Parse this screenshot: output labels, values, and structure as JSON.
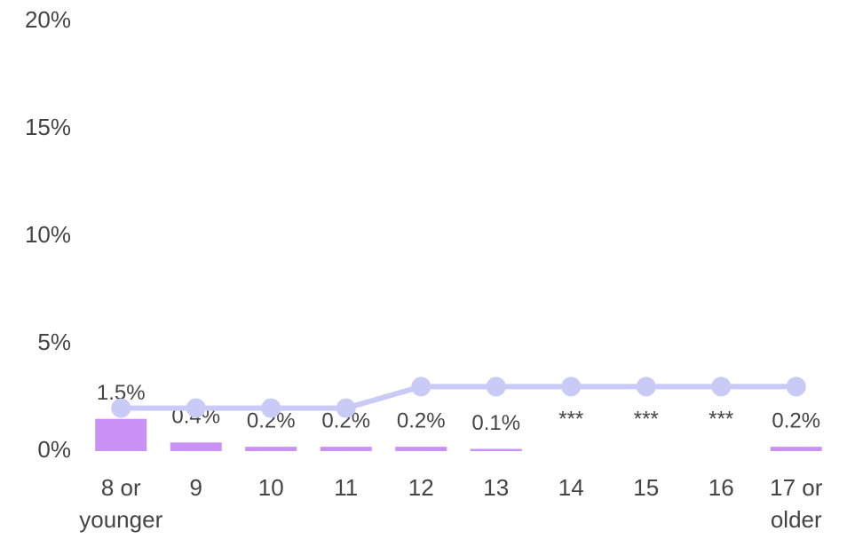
{
  "chart_data": {
    "type": "combo",
    "categories": [
      "8 or younger",
      "9",
      "10",
      "11",
      "12",
      "13",
      "14",
      "15",
      "16",
      "17 or older"
    ],
    "series": [
      {
        "type": "bar",
        "color": "#c990f5",
        "values": [
          1.5,
          0.4,
          0.2,
          0.2,
          0.2,
          0.1,
          null,
          null,
          null,
          0.2
        ],
        "value_labels": [
          "1.5%",
          "0.4%",
          "0.2%",
          "0.2%",
          "0.2%",
          "0.1%",
          "***",
          "***",
          "***",
          "0.2%"
        ]
      },
      {
        "type": "line",
        "color": "#c9caf6",
        "values": [
          2,
          2,
          2,
          2,
          3,
          3,
          3,
          3,
          3,
          3
        ]
      }
    ],
    "ylim": [
      0,
      20
    ],
    "yticks": [
      {
        "value": 0,
        "label": "0%"
      },
      {
        "value": 5,
        "label": "5%"
      },
      {
        "value": 10,
        "label": "10%"
      },
      {
        "value": 15,
        "label": "15%"
      },
      {
        "value": 20,
        "label": "20%"
      }
    ],
    "grid": false
  }
}
